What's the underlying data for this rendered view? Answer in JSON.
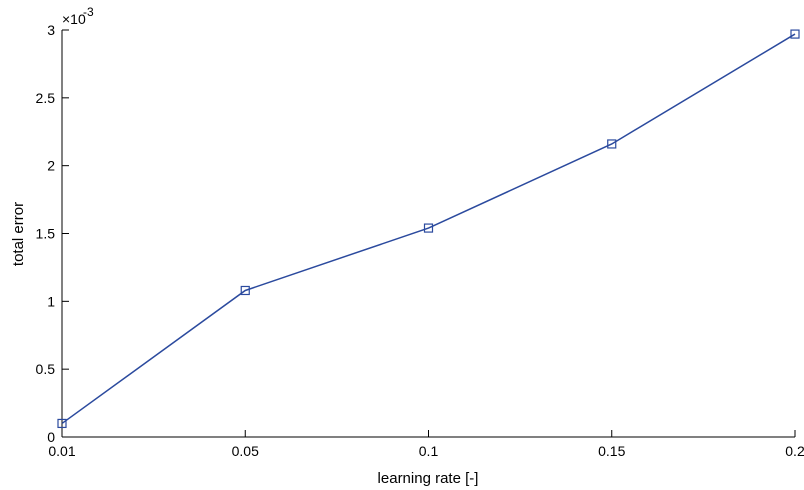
{
  "chart_data": {
    "type": "line",
    "title": "",
    "xlabel": "learning rate [-]",
    "ylabel": "total error",
    "y_multiplier_label": "×10",
    "y_multiplier_exponent": "-3",
    "x_ticks": [
      "0.01",
      "0.05",
      "0.1",
      "0.15",
      "0.2"
    ],
    "y_ticks": [
      "0",
      "0.5",
      "1",
      "1.5",
      "2",
      "2.5",
      "3"
    ],
    "ylim": [
      0,
      3
    ],
    "grid": false,
    "marker": "square",
    "series": [
      {
        "color": "#2b4a9e",
        "x": [
          0.01,
          0.05,
          0.1,
          0.15,
          0.2
        ],
        "y": [
          0.1,
          1.08,
          1.54,
          2.16,
          2.97
        ]
      }
    ]
  }
}
